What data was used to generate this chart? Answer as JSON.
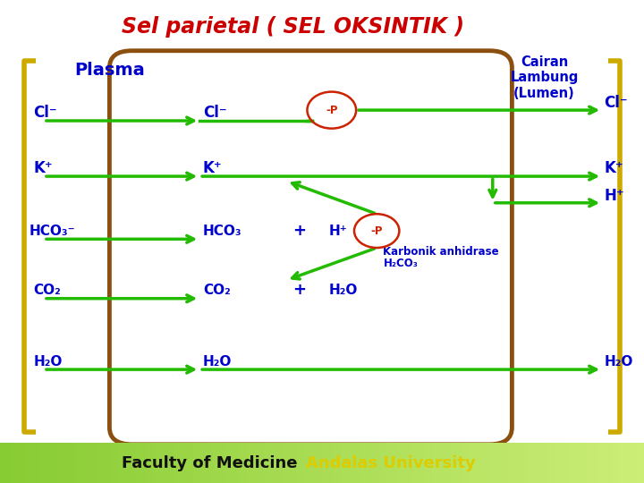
{
  "bg_color": "#ffffff",
  "title": "Sel parietal ( SEL OKSINTIK )",
  "title_color": "#cc0000",
  "title_fontsize": 17,
  "plasma_label": "Plasma",
  "cairan_label": "Cairan\nLambung\n(Lumen)",
  "label_color": "#0000cc",
  "label_fontsize": 14,
  "green": "#22bb00",
  "brown": "#8B5010",
  "red_circle": "#cc2200",
  "gold": "#ccaa00",
  "footer_bg1": "#aade44",
  "footer_bg2": "#88cc22",
  "footer_text1": "Faculty of Medicine",
  "footer_text2": "Andalas University",
  "footer_color1": "#111111",
  "footer_color2": "#ddcc00",
  "footer_fontsize": 13
}
